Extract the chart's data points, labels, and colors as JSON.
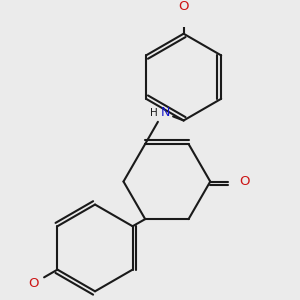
{
  "bg_color": "#ebebeb",
  "bond_color": "#1a1a1a",
  "bond_width": 1.5,
  "carbon_color": "#1a1a1a",
  "nitrogen_color": "#1414cc",
  "oxygen_color": "#cc1414",
  "font_size_atom": 8.5,
  "fig_size": [
    3.0,
    3.0
  ],
  "dpi": 100,
  "xlim": [
    -2.5,
    2.5
  ],
  "ylim": [
    -2.8,
    2.8
  ]
}
